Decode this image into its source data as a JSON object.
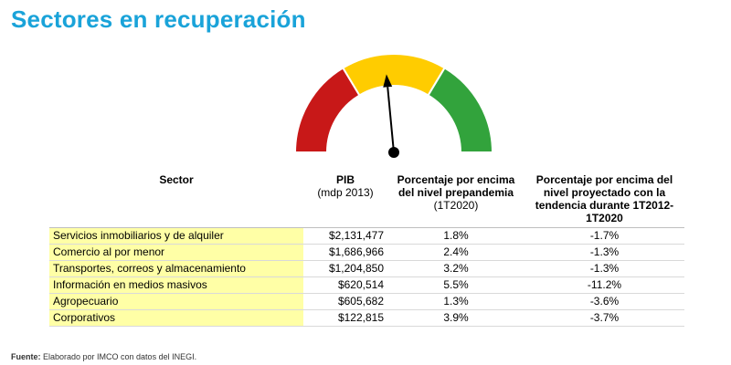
{
  "title": "Sectores en recuperación",
  "gauge": {
    "colors": {
      "red": "#c81818",
      "yellow": "#ffcc00",
      "green": "#32a33c",
      "needle": "#000000"
    },
    "needle_value": 0.47
  },
  "table": {
    "headers": {
      "sector": "Sector",
      "pib": "PIB",
      "pib_sub": "(mdp 2013)",
      "pre": "Porcentaje por encima del nivel prepandemia",
      "pre_sub": "(1T2020)",
      "proj": "Porcentaje por encima del nivel proyectado con la tendencia durante 1T2012-1T2020"
    },
    "rows": [
      {
        "sector": "Servicios inmobiliarios y de alquiler",
        "pib": "$2,131,477",
        "pre": "1.8%",
        "proj": "-1.7%"
      },
      {
        "sector": "Comercio al por menor",
        "pib": "$1,686,966",
        "pre": "2.4%",
        "proj": "-1.3%"
      },
      {
        "sector": "Transportes, correos y almacenamiento",
        "pib": "$1,204,850",
        "pre": "3.2%",
        "proj": "-1.3%"
      },
      {
        "sector": "Información en medios masivos",
        "pib": "$620,514",
        "pre": "5.5%",
        "proj": "-11.2%"
      },
      {
        "sector": "Agropecuario",
        "pib": "$605,682",
        "pre": "1.3%",
        "proj": "-3.6%"
      },
      {
        "sector": "Corporativos",
        "pib": "$122,815",
        "pre": "3.9%",
        "proj": "-3.7%"
      }
    ]
  },
  "footer": {
    "label": "Fuente:",
    "text": " Elaborado por IMCO con datos del INEGI."
  }
}
